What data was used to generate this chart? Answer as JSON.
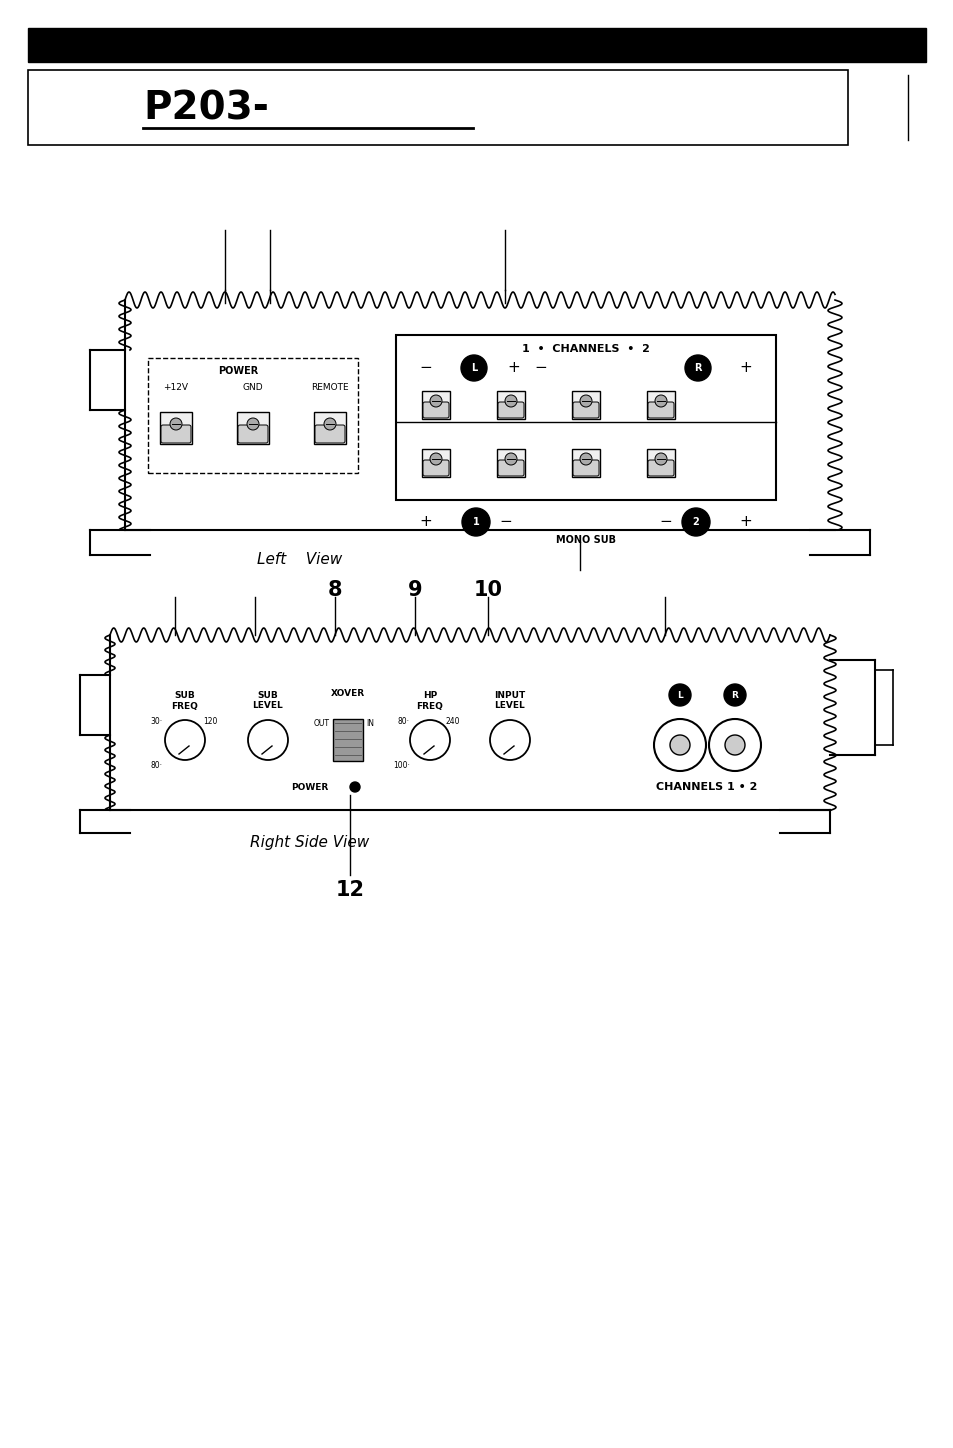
{
  "background_color": "#ffffff",
  "fg_color": "#000000",
  "title": "P203-",
  "left_view_label": "Left    View",
  "right_side_label": "Right Side View"
}
